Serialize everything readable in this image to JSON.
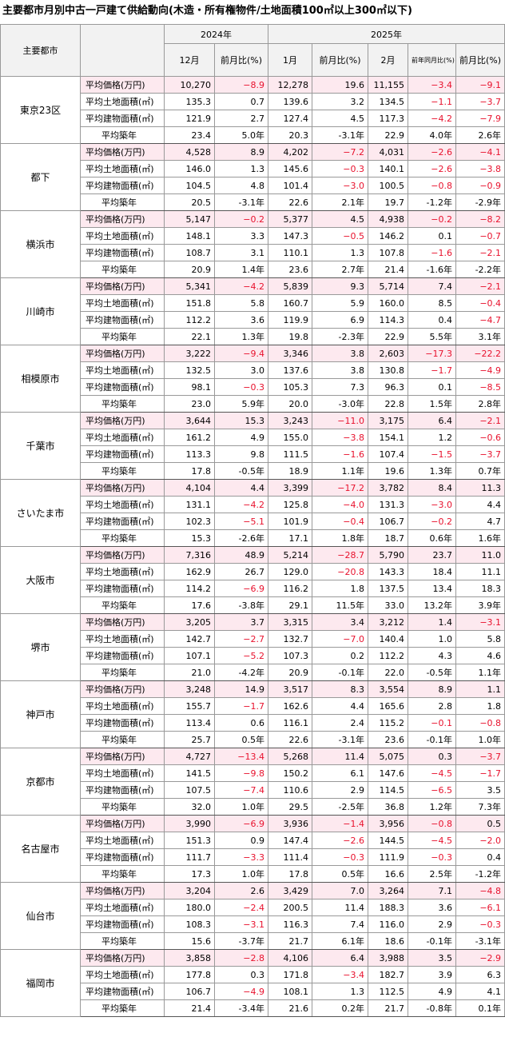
{
  "title": "主要都市月別中古一戸建て供給動向(木造・所有権物件/土地面積100㎡以上300㎡以下)",
  "header": {
    "city": "主要都市",
    "years": [
      "2024年",
      "2025年"
    ],
    "columns": [
      "12月",
      "前月比(%)",
      "1月",
      "前月比(%)",
      "2月",
      "前年同月比(%)",
      "前月比(%)"
    ]
  },
  "row_labels": [
    "平均価格(万円)",
    "平均土地面積(㎡)",
    "平均建物面積(㎡)",
    "平均築年"
  ],
  "cities": [
    {
      "name": "東京23区",
      "rows": [
        [
          "10,270",
          "-8.9",
          "12,278",
          "19.6",
          "11,155",
          "-3.4",
          "-9.1"
        ],
        [
          "135.3",
          "0.7",
          "139.6",
          "3.2",
          "134.5",
          "-1.1",
          "-3.7"
        ],
        [
          "121.9",
          "2.7",
          "127.4",
          "4.5",
          "117.3",
          "-4.2",
          "-7.9"
        ],
        [
          "23.4",
          "5.0年",
          "20.3",
          "-3.1年",
          "22.9",
          "4.0年",
          "2.6年"
        ]
      ]
    },
    {
      "name": "都下",
      "rows": [
        [
          "4,528",
          "8.9",
          "4,202",
          "-7.2",
          "4,031",
          "-2.6",
          "-4.1"
        ],
        [
          "146.0",
          "1.3",
          "145.6",
          "-0.3",
          "140.1",
          "-2.6",
          "-3.8"
        ],
        [
          "104.5",
          "4.8",
          "101.4",
          "-3.0",
          "100.5",
          "-0.8",
          "-0.9"
        ],
        [
          "20.5",
          "-3.1年",
          "22.6",
          "2.1年",
          "19.7",
          "-1.2年",
          "-2.9年"
        ]
      ]
    },
    {
      "name": "横浜市",
      "rows": [
        [
          "5,147",
          "-0.2",
          "5,377",
          "4.5",
          "4,938",
          "-0.2",
          "-8.2"
        ],
        [
          "148.1",
          "3.3",
          "147.3",
          "-0.5",
          "146.2",
          "0.1",
          "-0.7"
        ],
        [
          "108.7",
          "3.1",
          "110.1",
          "1.3",
          "107.8",
          "-1.6",
          "-2.1"
        ],
        [
          "20.9",
          "1.4年",
          "23.6",
          "2.7年",
          "21.4",
          "-1.6年",
          "-2.2年"
        ]
      ]
    },
    {
      "name": "川崎市",
      "rows": [
        [
          "5,341",
          "-4.2",
          "5,839",
          "9.3",
          "5,714",
          "7.4",
          "-2.1"
        ],
        [
          "151.8",
          "5.8",
          "160.7",
          "5.9",
          "160.0",
          "8.5",
          "-0.4"
        ],
        [
          "112.2",
          "3.6",
          "119.9",
          "6.9",
          "114.3",
          "0.4",
          "-4.7"
        ],
        [
          "22.1",
          "1.3年",
          "19.8",
          "-2.3年",
          "22.9",
          "5.5年",
          "3.1年"
        ]
      ]
    },
    {
      "name": "相模原市",
      "rows": [
        [
          "3,222",
          "-9.4",
          "3,346",
          "3.8",
          "2,603",
          "-17.3",
          "-22.2"
        ],
        [
          "132.5",
          "3.0",
          "137.6",
          "3.8",
          "130.8",
          "-1.7",
          "-4.9"
        ],
        [
          "98.1",
          "-0.3",
          "105.3",
          "7.3",
          "96.3",
          "0.1",
          "-8.5"
        ],
        [
          "23.0",
          "5.9年",
          "20.0",
          "-3.0年",
          "22.8",
          "1.5年",
          "2.8年"
        ]
      ]
    },
    {
      "name": "千葉市",
      "rows": [
        [
          "3,644",
          "15.3",
          "3,243",
          "-11.0",
          "3,175",
          "6.4",
          "-2.1"
        ],
        [
          "161.2",
          "4.9",
          "155.0",
          "-3.8",
          "154.1",
          "1.2",
          "-0.6"
        ],
        [
          "113.3",
          "9.8",
          "111.5",
          "-1.6",
          "107.4",
          "-1.5",
          "-3.7"
        ],
        [
          "17.8",
          "-0.5年",
          "18.9",
          "1.1年",
          "19.6",
          "1.3年",
          "0.7年"
        ]
      ]
    },
    {
      "name": "さいたま市",
      "rows": [
        [
          "4,104",
          "4.4",
          "3,399",
          "-17.2",
          "3,782",
          "8.4",
          "11.3"
        ],
        [
          "131.1",
          "-4.2",
          "125.8",
          "-4.0",
          "131.3",
          "-3.0",
          "4.4"
        ],
        [
          "102.3",
          "-5.1",
          "101.9",
          "-0.4",
          "106.7",
          "-0.2",
          "4.7"
        ],
        [
          "15.3",
          "-2.6年",
          "17.1",
          "1.8年",
          "18.7",
          "0.6年",
          "1.6年"
        ]
      ]
    },
    {
      "name": "大阪市",
      "rows": [
        [
          "7,316",
          "48.9",
          "5,214",
          "-28.7",
          "5,790",
          "23.7",
          "11.0"
        ],
        [
          "162.9",
          "26.7",
          "129.0",
          "-20.8",
          "143.3",
          "18.4",
          "11.1"
        ],
        [
          "114.2",
          "-6.9",
          "116.2",
          "1.8",
          "137.5",
          "13.4",
          "18.3"
        ],
        [
          "17.6",
          "-3.8年",
          "29.1",
          "11.5年",
          "33.0",
          "13.2年",
          "3.9年"
        ]
      ]
    },
    {
      "name": "堺市",
      "rows": [
        [
          "3,205",
          "3.7",
          "3,315",
          "3.4",
          "3,212",
          "1.4",
          "-3.1"
        ],
        [
          "142.7",
          "-2.7",
          "132.7",
          "-7.0",
          "140.4",
          "1.0",
          "5.8"
        ],
        [
          "107.1",
          "-5.2",
          "107.3",
          "0.2",
          "112.2",
          "4.3",
          "4.6"
        ],
        [
          "21.0",
          "-4.2年",
          "20.9",
          "-0.1年",
          "22.0",
          "-0.5年",
          "1.1年"
        ]
      ]
    },
    {
      "name": "神戸市",
      "rows": [
        [
          "3,248",
          "14.9",
          "3,517",
          "8.3",
          "3,554",
          "8.9",
          "1.1"
        ],
        [
          "155.7",
          "-1.7",
          "162.6",
          "4.4",
          "165.6",
          "2.8",
          "1.8"
        ],
        [
          "113.4",
          "0.6",
          "116.1",
          "2.4",
          "115.2",
          "-0.1",
          "-0.8"
        ],
        [
          "25.7",
          "0.5年",
          "22.6",
          "-3.1年",
          "23.6",
          "-0.1年",
          "1.0年"
        ]
      ]
    },
    {
      "name": "京都市",
      "rows": [
        [
          "4,727",
          "-13.4",
          "5,268",
          "11.4",
          "5,075",
          "0.3",
          "-3.7"
        ],
        [
          "141.5",
          "-9.8",
          "150.2",
          "6.1",
          "147.6",
          "-4.5",
          "-1.7"
        ],
        [
          "107.5",
          "-7.4",
          "110.6",
          "2.9",
          "114.5",
          "-6.5",
          "3.5"
        ],
        [
          "32.0",
          "1.0年",
          "29.5",
          "-2.5年",
          "36.8",
          "1.2年",
          "7.3年"
        ]
      ]
    },
    {
      "name": "名古屋市",
      "rows": [
        [
          "3,990",
          "-6.9",
          "3,936",
          "-1.4",
          "3,956",
          "-0.8",
          "0.5"
        ],
        [
          "151.3",
          "0.9",
          "147.4",
          "-2.6",
          "144.5",
          "-4.5",
          "-2.0"
        ],
        [
          "111.7",
          "-3.3",
          "111.4",
          "-0.3",
          "111.9",
          "-0.3",
          "0.4"
        ],
        [
          "17.3",
          "1.0年",
          "17.8",
          "0.5年",
          "16.6",
          "2.5年",
          "-1.2年"
        ]
      ]
    },
    {
      "name": "仙台市",
      "rows": [
        [
          "3,204",
          "2.6",
          "3,429",
          "7.0",
          "3,264",
          "7.1",
          "-4.8"
        ],
        [
          "180.0",
          "-2.4",
          "200.5",
          "11.4",
          "188.3",
          "3.6",
          "-6.1"
        ],
        [
          "108.3",
          "-3.1",
          "116.3",
          "7.4",
          "116.0",
          "2.9",
          "-0.3"
        ],
        [
          "15.6",
          "-3.7年",
          "21.7",
          "6.1年",
          "18.6",
          "-0.1年",
          "-3.1年"
        ]
      ]
    },
    {
      "name": "福岡市",
      "rows": [
        [
          "3,858",
          "-2.8",
          "4,106",
          "6.4",
          "3,988",
          "3.5",
          "-2.9"
        ],
        [
          "177.8",
          "0.3",
          "171.8",
          "-3.4",
          "182.7",
          "3.9",
          "6.3"
        ],
        [
          "106.7",
          "-4.9",
          "108.1",
          "1.3",
          "112.5",
          "4.9",
          "4.1"
        ],
        [
          "21.4",
          "-3.4年",
          "21.6",
          "0.2年",
          "21.7",
          "-0.8年",
          "0.1年"
        ]
      ]
    }
  ]
}
